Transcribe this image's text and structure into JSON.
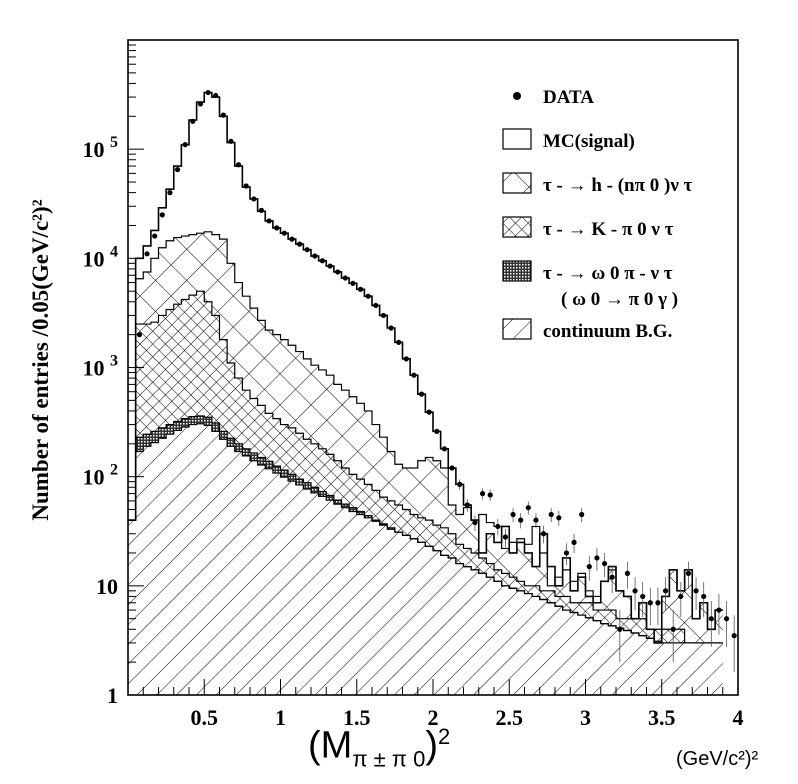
{
  "chart_data": {
    "type": "histogram",
    "y_scale": "log",
    "xlim": [
      0.0,
      4.0
    ],
    "ylim": [
      1,
      1000000
    ],
    "bin_width": 0.05,
    "x_axis_label_main": "(M",
    "x_axis_label_sub": "π ± π 0",
    "x_axis_label_sup": "2",
    "x_axis_label_close": ")",
    "x_unit": "(GeV/c²)²",
    "y_axis_label": "Number of entries /0.05(GeV/c²)²",
    "x_ticks": [
      "0.5",
      "1",
      "1.5",
      "2",
      "2.5",
      "3",
      "3.5",
      "4"
    ],
    "x_tick_values": [
      0.5,
      1.0,
      1.5,
      2.0,
      2.5,
      3.0,
      3.5,
      4.0
    ],
    "y_ticks": [
      {
        "value": 1,
        "label": "1"
      },
      {
        "value": 10,
        "label": "10"
      },
      {
        "value": 100,
        "label": "10 2"
      },
      {
        "value": 1000,
        "label": "10 3"
      },
      {
        "value": 10000,
        "label": "10 4"
      },
      {
        "value": 100000,
        "label": "10 5"
      }
    ],
    "legend_position": "top-right",
    "legend": [
      {
        "key": "data",
        "label": "DATA"
      },
      {
        "key": "signal",
        "label": "MC(signal)"
      },
      {
        "key": "hnpi",
        "label": "τ - → h - (nπ 0 )ν τ"
      },
      {
        "key": "kpi",
        "label": "τ - → K - π 0 ν τ"
      },
      {
        "key": "omega",
        "label": "τ - → ω 0 π - ν τ",
        "label2": "( ω 0 → π 0 γ )"
      },
      {
        "key": "cont",
        "label": "continuum B.G."
      }
    ],
    "bin_edges_start": 0.0,
    "total_mc": [
      40,
      10000,
      13000,
      18000,
      29000,
      43000,
      70000,
      110000,
      185000,
      270000,
      330000,
      300000,
      200000,
      115000,
      70000,
      45000,
      35000,
      27000,
      22000,
      19000,
      17000,
      15000,
      13500,
      12000,
      10500,
      9500,
      8500,
      7500,
      6600,
      5900,
      5200,
      4500,
      3700,
      3000,
      2300,
      1700,
      1200,
      850,
      570,
      390,
      260,
      180,
      120,
      85,
      55,
      40,
      20,
      30,
      25,
      35,
      20,
      25,
      20,
      15,
      30,
      15,
      10,
      18,
      9,
      12,
      8,
      7,
      11,
      15,
      9,
      8,
      5,
      7,
      4,
      3,
      8,
      14,
      9,
      14,
      5,
      7,
      4,
      6
    ],
    "hnpi_top": [
      40,
      6500,
      7500,
      10000,
      12500,
      14500,
      15500,
      16000,
      16500,
      17000,
      17500,
      16500,
      15000,
      9000,
      6000,
      4500,
      3500,
      2700,
      2200,
      2000,
      1800,
      1600,
      1400,
      1200,
      1050,
      950,
      850,
      700,
      620,
      540,
      470,
      400,
      300,
      230,
      170,
      130,
      120,
      120,
      140,
      150,
      140,
      120,
      55,
      45,
      52,
      40,
      45,
      38,
      35,
      22,
      25,
      27,
      24,
      35,
      20,
      10,
      12,
      14,
      11,
      13,
      9,
      8,
      11,
      14,
      9,
      8,
      5,
      7,
      4,
      3,
      8,
      14,
      9,
      14,
      5,
      7,
      4,
      6
    ],
    "kpi_top": [
      40,
      2500,
      2500,
      2600,
      3000,
      3400,
      3800,
      4200,
      4600,
      5000,
      4000,
      3000,
      1800,
      1100,
      800,
      620,
      520,
      450,
      380,
      340,
      300,
      280,
      250,
      220,
      200,
      180,
      160,
      140,
      120,
      105,
      95,
      85,
      75,
      65,
      60,
      55,
      50,
      45,
      42,
      40,
      36,
      34,
      30,
      24,
      22,
      20,
      18,
      16,
      14,
      13,
      12,
      11,
      10,
      10,
      9,
      9,
      8,
      8,
      7,
      7,
      7,
      6,
      6,
      6,
      5,
      5,
      5,
      5,
      4,
      4,
      4,
      4,
      4,
      3,
      3,
      3,
      3,
      3
    ],
    "omega_top": [
      40,
      230,
      245,
      260,
      280,
      300,
      320,
      340,
      355,
      360,
      350,
      310,
      260,
      225,
      200,
      180,
      165,
      150,
      138,
      125,
      115,
      105,
      95,
      88,
      80,
      73,
      67,
      61,
      56,
      52,
      48,
      44,
      40,
      37,
      34,
      31,
      29,
      27,
      25,
      23,
      21,
      19,
      18,
      16,
      15,
      14,
      13,
      12,
      11,
      10,
      9.5,
      9,
      8.5,
      8,
      7.5,
      7,
      6.5,
      6,
      5.7,
      5.4,
      5.1,
      4.8,
      4.5,
      4.3,
      4.1,
      3.9,
      3.7,
      3.5,
      3.3,
      3.1,
      3,
      3,
      3,
      3,
      3,
      3,
      3,
      3
    ],
    "cont_top": [
      40,
      170,
      190,
      205,
      225,
      245,
      265,
      285,
      300,
      305,
      295,
      260,
      220,
      190,
      170,
      155,
      140,
      128,
      118,
      108,
      99,
      91,
      84,
      77,
      71,
      66,
      61,
      56,
      52,
      48,
      45,
      42,
      39,
      36,
      33,
      31,
      29,
      27,
      25,
      23,
      21,
      19,
      18,
      16,
      15,
      14,
      13,
      12,
      11,
      10,
      9.5,
      9,
      8.5,
      8,
      7.5,
      7,
      6.5,
      6,
      5.7,
      5.4,
      5.1,
      4.8,
      4.5,
      4.3,
      4.1,
      3.9,
      3.7,
      3.5,
      3.3,
      3.1,
      3,
      3,
      3,
      3,
      3,
      3,
      3,
      3
    ],
    "data_points": [
      {
        "x": 0.075,
        "y": 2000
      },
      {
        "x": 0.125,
        "y": 11000
      },
      {
        "x": 0.175,
        "y": 16000
      },
      {
        "x": 0.225,
        "y": 25000
      },
      {
        "x": 0.275,
        "y": 40000
      },
      {
        "x": 0.325,
        "y": 65000
      },
      {
        "x": 0.375,
        "y": 110000
      },
      {
        "x": 0.425,
        "y": 180000
      },
      {
        "x": 0.475,
        "y": 260000
      },
      {
        "x": 0.525,
        "y": 330000
      },
      {
        "x": 0.575,
        "y": 310000
      },
      {
        "x": 0.625,
        "y": 205000
      },
      {
        "x": 0.675,
        "y": 118000
      },
      {
        "x": 0.725,
        "y": 72000
      },
      {
        "x": 0.775,
        "y": 46000
      },
      {
        "x": 0.825,
        "y": 35000
      },
      {
        "x": 0.875,
        "y": 27500
      },
      {
        "x": 0.925,
        "y": 22000
      },
      {
        "x": 0.975,
        "y": 19000
      },
      {
        "x": 1.025,
        "y": 17000
      },
      {
        "x": 1.075,
        "y": 15000
      },
      {
        "x": 1.125,
        "y": 13500
      },
      {
        "x": 1.175,
        "y": 12000
      },
      {
        "x": 1.225,
        "y": 10500
      },
      {
        "x": 1.275,
        "y": 9500
      },
      {
        "x": 1.325,
        "y": 8500
      },
      {
        "x": 1.375,
        "y": 7500
      },
      {
        "x": 1.425,
        "y": 6600
      },
      {
        "x": 1.475,
        "y": 5900
      },
      {
        "x": 1.525,
        "y": 5200
      },
      {
        "x": 1.575,
        "y": 4500
      },
      {
        "x": 1.625,
        "y": 3700
      },
      {
        "x": 1.675,
        "y": 3000
      },
      {
        "x": 1.725,
        "y": 2300
      },
      {
        "x": 1.775,
        "y": 1700
      },
      {
        "x": 1.825,
        "y": 1200
      },
      {
        "x": 1.875,
        "y": 850
      },
      {
        "x": 1.925,
        "y": 570
      },
      {
        "x": 1.975,
        "y": 390
      },
      {
        "x": 2.025,
        "y": 260
      },
      {
        "x": 2.075,
        "y": 180
      },
      {
        "x": 2.125,
        "y": 120
      },
      {
        "x": 2.175,
        "y": 85
      },
      {
        "x": 2.225,
        "y": 55
      },
      {
        "x": 2.275,
        "y": 38
      },
      {
        "x": 2.325,
        "y": 70
      },
      {
        "x": 2.375,
        "y": 68
      },
      {
        "x": 2.425,
        "y": 35
      },
      {
        "x": 2.475,
        "y": 28
      },
      {
        "x": 2.525,
        "y": 45
      },
      {
        "x": 2.575,
        "y": 40
      },
      {
        "x": 2.625,
        "y": 52
      },
      {
        "x": 2.675,
        "y": 40
      },
      {
        "x": 2.725,
        "y": 30
      },
      {
        "x": 2.775,
        "y": 45
      },
      {
        "x": 2.825,
        "y": 42
      },
      {
        "x": 2.875,
        "y": 20
      },
      {
        "x": 2.925,
        "y": 25
      },
      {
        "x": 2.975,
        "y": 45
      },
      {
        "x": 3.025,
        "y": 15
      },
      {
        "x": 3.075,
        "y": 18
      },
      {
        "x": 3.125,
        "y": 16
      },
      {
        "x": 3.175,
        "y": 12
      },
      {
        "x": 3.225,
        "y": 4
      },
      {
        "x": 3.275,
        "y": 13
      },
      {
        "x": 3.325,
        "y": 9
      },
      {
        "x": 3.375,
        "y": 8
      },
      {
        "x": 3.425,
        "y": 7
      },
      {
        "x": 3.475,
        "y": 7
      },
      {
        "x": 3.525,
        "y": 9
      },
      {
        "x": 3.575,
        "y": 4
      },
      {
        "x": 3.625,
        "y": 8
      },
      {
        "x": 3.675,
        "y": 13
      },
      {
        "x": 3.725,
        "y": 9
      },
      {
        "x": 3.775,
        "y": 8
      },
      {
        "x": 3.825,
        "y": 5
      },
      {
        "x": 3.875,
        "y": 6
      },
      {
        "x": 3.925,
        "y": 5
      },
      {
        "x": 3.975,
        "y": 3.5
      }
    ]
  }
}
